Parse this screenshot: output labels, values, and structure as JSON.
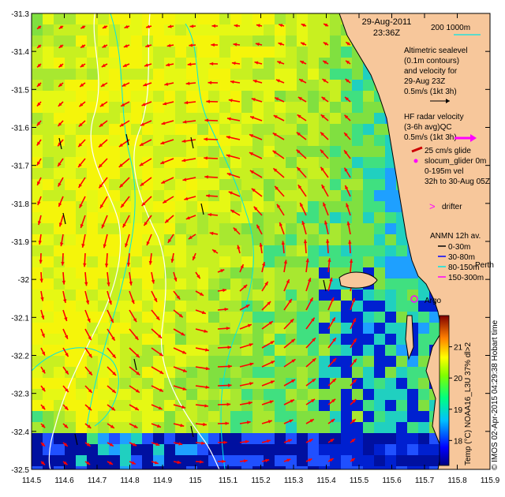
{
  "map": {
    "timestamp_date": "29-Aug-2011",
    "timestamp_time": "23:36Z",
    "x_ticks": [
      "114.5",
      "114.6",
      "114.7",
      "114.8",
      "114.9",
      "115",
      "115.1",
      "115.2",
      "115.3",
      "115.4",
      "115.5",
      "115.6",
      "115.7",
      "115.8",
      "115.9"
    ],
    "y_ticks": [
      "-31.3",
      "-31.4",
      "-31.5",
      "-31.6",
      "-31.7",
      "-31.8",
      "-31.9",
      "-32",
      "-32.1",
      "-32.2",
      "-32.3",
      "-32.4",
      "-32.5"
    ],
    "xlim": [
      114.5,
      115.9
    ],
    "ylim": [
      -32.5,
      -31.3
    ],
    "bathymetry_label": "200  1000m",
    "altimetry_lines": [
      "Altimetric sealevel",
      "(0.1m contours)",
      "and velocity for",
      "29-Aug 23Z",
      "0.5m/s (1kt 3h)"
    ],
    "hf_radar_lines": [
      "HF radar velocity",
      "(3-6h avg)QC",
      "0.5m/s (1kt 3h)"
    ],
    "glider_lines": [
      "25 cm/s glide",
      "slocum_glider 0m",
      "0-195m vel",
      "32h to 30-Aug 05Z"
    ],
    "drifter_label": "drifter",
    "anmn_lines": [
      "ANMN 12h av.",
      "0-30m",
      "30-80m",
      "80-150m",
      "150-300m"
    ],
    "place_label": "Perth",
    "argo_label": "Argo",
    "colorbar": {
      "label": "Temp (°C) NOAA16_L3U 37% dl>2",
      "ticks": [
        "18",
        "19",
        "20",
        "21"
      ],
      "range": [
        17.2,
        22
      ]
    },
    "credit": "© IMOS 02-Apr-2015 04:29:38 Hobart time",
    "colors": {
      "land": "#f7c79b",
      "radar_arrow": "#ff0000",
      "altimetry_arrow": "#000000",
      "hf_key_arrow": "#ff00ff",
      "bathymetry_line": "#00e5e5",
      "argo": "#ff00ff",
      "coast": "#000000"
    }
  }
}
